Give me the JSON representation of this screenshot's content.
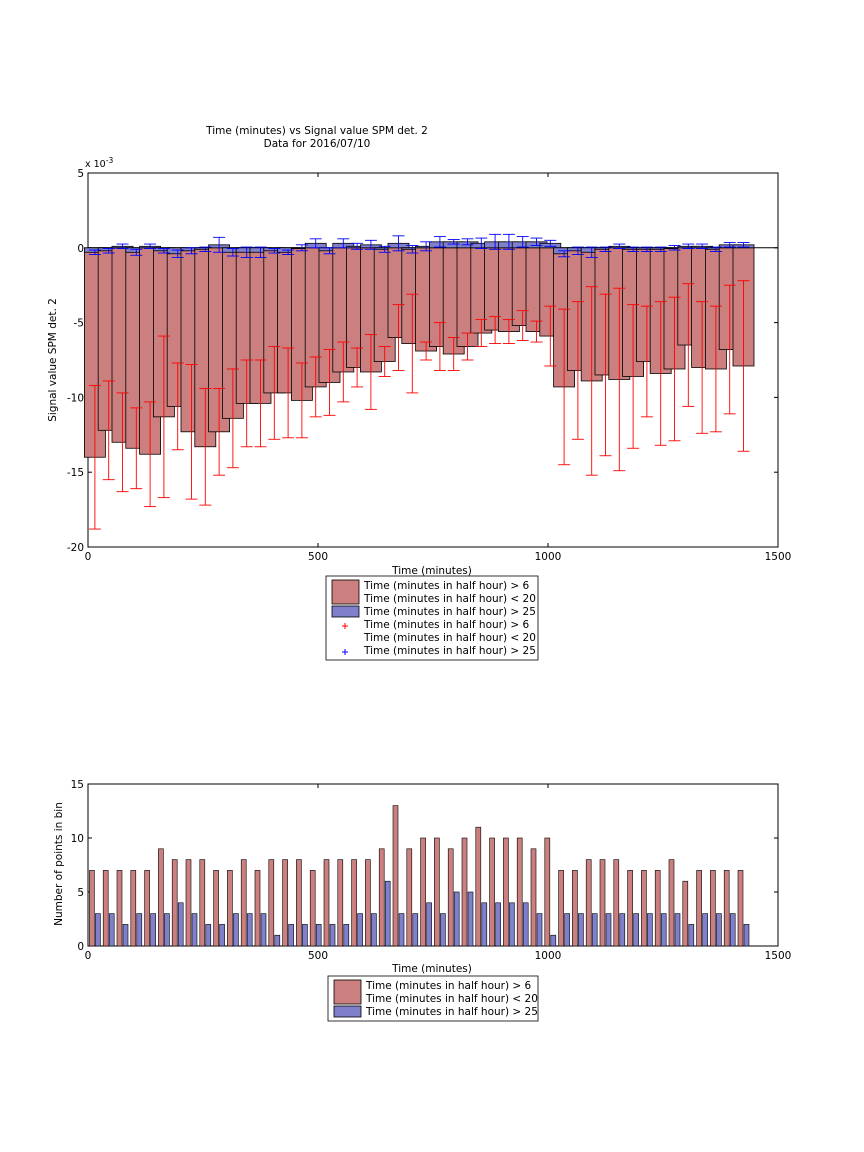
{
  "chart_data": [
    {
      "type": "bar",
      "title": "Time (minutes) vs Signal value SPM det. 2",
      "subtitle": "Data for 2016/07/10",
      "xlabel": "Time (minutes)",
      "ylabel": "Signal value SPM det. 2",
      "y_exponent_label": "x 10",
      "y_exponent_power": "-3",
      "xlim": [
        0,
        1500
      ],
      "ylim": [
        -20,
        5
      ],
      "x_ticks": [
        "0",
        "500",
        "1000",
        "1500"
      ],
      "y_ticks": [
        "-20",
        "-15",
        "-10",
        "-5",
        "0",
        "5"
      ],
      "x": [
        15,
        45,
        75,
        105,
        135,
        165,
        195,
        225,
        255,
        285,
        315,
        345,
        375,
        405,
        435,
        465,
        495,
        525,
        555,
        585,
        615,
        645,
        675,
        705,
        735,
        765,
        795,
        825,
        855,
        885,
        915,
        945,
        975,
        1005,
        1035,
        1065,
        1095,
        1125,
        1155,
        1185,
        1215,
        1245,
        1275,
        1305,
        1335,
        1365,
        1395,
        1425
      ],
      "series": [
        {
          "name": "Time (minutes in half hour) > 6\nTime (minutes in half hour) < 20",
          "color": "#cc7f7f",
          "error_color": "#ff0000",
          "values": [
            -14,
            -12.2,
            -13,
            -13.4,
            -13.8,
            -11.3,
            -10.6,
            -12.3,
            -13.3,
            -12.3,
            -11.4,
            -10.4,
            -10.4,
            -9.7,
            -9.7,
            -10.2,
            -9.3,
            -9.0,
            -8.3,
            -8.0,
            -8.3,
            -7.6,
            -6.0,
            -6.4,
            -6.9,
            -6.6,
            -7.1,
            -6.6,
            -5.7,
            -5.5,
            -5.6,
            -5.2,
            -5.6,
            -5.9,
            -9.3,
            -8.2,
            -8.9,
            -8.5,
            -8.8,
            -8.6,
            -7.6,
            -8.4,
            -8.1,
            -6.5,
            -8.0,
            -8.1,
            -6.8,
            -7.9
          ],
          "errors": [
            4.8,
            3.3,
            3.3,
            2.7,
            3.5,
            5.4,
            2.9,
            4.5,
            3.9,
            2.9,
            3.3,
            2.9,
            2.9,
            3.1,
            3.0,
            2.5,
            2.0,
            2.2,
            2.0,
            1.3,
            2.5,
            1.0,
            2.2,
            3.3,
            0.6,
            1.6,
            1.1,
            0.9,
            0.9,
            0.9,
            0.8,
            1.0,
            0.7,
            2.0,
            5.2,
            4.6,
            6.3,
            5.4,
            6.1,
            4.8,
            3.7,
            4.8,
            4.8,
            4.1,
            4.4,
            4.2,
            4.3,
            5.7
          ]
        },
        {
          "name": "Time (minutes in half hour) > 25",
          "color": "#7f7fcc",
          "error_color": "#0000ff",
          "values": [
            -0.3,
            -0.2,
            0.1,
            -0.3,
            0.1,
            -0.2,
            -0.4,
            -0.2,
            -0.1,
            0.2,
            -0.3,
            -0.3,
            -0.3,
            -0.2,
            -0.3,
            0.0,
            0.3,
            -0.2,
            0.3,
            0.1,
            0.2,
            -0.1,
            0.3,
            -0.1,
            0.1,
            0.4,
            0.4,
            0.4,
            0.3,
            0.4,
            0.4,
            0.4,
            0.4,
            0.3,
            -0.4,
            -0.2,
            -0.3,
            -0.1,
            0.1,
            -0.1,
            -0.1,
            -0.1,
            0.0,
            0.1,
            0.1,
            -0.1,
            0.2,
            0.2
          ],
          "errors": [
            0.15,
            0.15,
            0.15,
            0.2,
            0.15,
            0.15,
            0.25,
            0.2,
            0.15,
            0.5,
            0.25,
            0.35,
            0.35,
            0.15,
            0.15,
            0.2,
            0.3,
            0.2,
            0.3,
            0.2,
            0.3,
            0.2,
            0.5,
            0.25,
            0.3,
            0.35,
            0.15,
            0.2,
            0.35,
            0.5,
            0.5,
            0.35,
            0.25,
            0.2,
            0.2,
            0.25,
            0.35,
            0.15,
            0.15,
            0.15,
            0.15,
            0.15,
            0.15,
            0.15,
            0.15,
            0.15,
            0.15,
            0.15
          ]
        }
      ],
      "legend": [
        {
          "kind": "bar",
          "series": 0,
          "lines": [
            "Time (minutes in half hour) > 6",
            "Time (minutes in half hour) < 20"
          ]
        },
        {
          "kind": "bar",
          "series": 1,
          "lines": [
            "Time (minutes in half hour) > 25"
          ]
        },
        {
          "kind": "marker",
          "series": 0,
          "lines": [
            "Time (minutes in half hour) > 6",
            "Time (minutes in half hour) < 20"
          ]
        },
        {
          "kind": "marker",
          "series": 1,
          "lines": [
            "Time (minutes in half hour) > 25"
          ]
        }
      ],
      "legend_location": "below",
      "grid": false
    },
    {
      "type": "bar",
      "title": "",
      "xlabel": "Time (minutes)",
      "ylabel": "Number of points in bin",
      "xlim": [
        0,
        1500
      ],
      "ylim": [
        0,
        15
      ],
      "x_ticks": [
        "0",
        "500",
        "1000",
        "1500"
      ],
      "y_ticks": [
        "0",
        "5",
        "10",
        "15"
      ],
      "x": [
        15,
        45,
        75,
        105,
        135,
        165,
        195,
        225,
        255,
        285,
        315,
        345,
        375,
        405,
        435,
        465,
        495,
        525,
        555,
        585,
        615,
        645,
        675,
        705,
        735,
        765,
        795,
        825,
        855,
        885,
        915,
        945,
        975,
        1005,
        1035,
        1065,
        1095,
        1125,
        1155,
        1185,
        1215,
        1245,
        1275,
        1305,
        1335,
        1365,
        1395,
        1425
      ],
      "series": [
        {
          "name": "Time (minutes in half hour) > 6\nTime (minutes in half hour) < 20",
          "color": "#cc7f7f",
          "values": [
            7,
            7,
            7,
            7,
            7,
            9,
            8,
            8,
            8,
            7,
            7,
            8,
            7,
            8,
            8,
            8,
            7,
            8,
            8,
            8,
            8,
            9,
            13,
            9,
            10,
            10,
            9,
            10,
            11,
            10,
            10,
            10,
            9,
            10,
            7,
            7,
            8,
            8,
            8,
            7,
            7,
            7,
            8,
            6,
            7,
            7,
            7,
            7
          ]
        },
        {
          "name": "Time (minutes in half hour) > 25",
          "color": "#7f7fcc",
          "values": [
            3,
            3,
            2,
            3,
            3,
            3,
            4,
            3,
            2,
            2,
            3,
            3,
            3,
            1,
            2,
            2,
            2,
            2,
            2,
            3,
            3,
            6,
            3,
            3,
            4,
            3,
            5,
            5,
            4,
            4,
            4,
            4,
            3,
            1,
            3,
            3,
            3,
            3,
            3,
            3,
            3,
            3,
            3,
            2,
            3,
            3,
            3,
            2
          ]
        }
      ],
      "legend": [
        {
          "kind": "bar",
          "series": 0,
          "lines": [
            "Time (minutes in half hour) > 6",
            "Time (minutes in half hour) < 20"
          ]
        },
        {
          "kind": "bar",
          "series": 1,
          "lines": [
            "Time (minutes in half hour) > 25"
          ]
        }
      ],
      "legend_location": "below",
      "grid": false
    }
  ]
}
